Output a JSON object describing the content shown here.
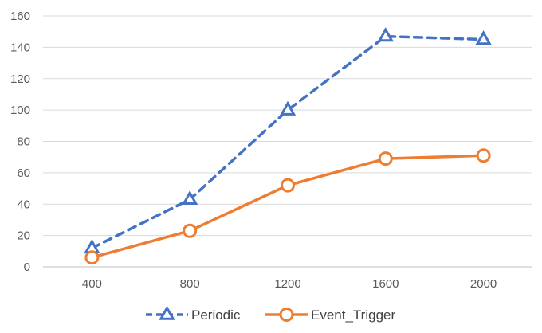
{
  "chart_data": {
    "type": "line",
    "title": "",
    "xlabel": "",
    "ylabel": "",
    "categories": [
      "400",
      "800",
      "1200",
      "1600",
      "2000"
    ],
    "ylim": [
      0,
      160
    ],
    "yticks": [
      "0",
      "20",
      "40",
      "60",
      "80",
      "100",
      "120",
      "140",
      "160"
    ],
    "grid": true,
    "legend_position": "bottom",
    "series": [
      {
        "name": "Periodic",
        "values": [
          12,
          43,
          100,
          147,
          145
        ],
        "color": "#4472C4",
        "line_style": "dashed",
        "marker": "triangle"
      },
      {
        "name": "Event_Trigger",
        "values": [
          6,
          23,
          52,
          69,
          71
        ],
        "color": "#ED7D31",
        "line_style": "solid",
        "marker": "circle"
      }
    ]
  }
}
